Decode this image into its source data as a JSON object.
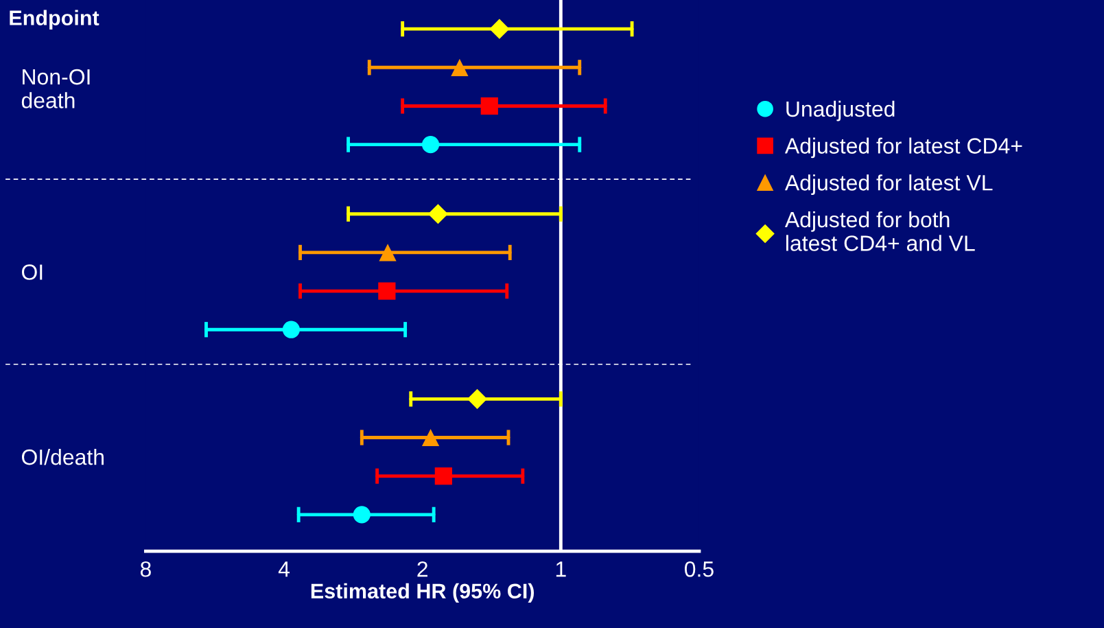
{
  "chart_data": {
    "type": "scatter",
    "orientation": "horizontal",
    "xlabel": "Estimated HR (95% CI)",
    "ylabel": "Endpoint",
    "categories": [
      "Non-OI\ndeath",
      "OI",
      "OI/death"
    ],
    "series": [
      {
        "name": "Unadjusted",
        "color": "#00ffff",
        "marker": "circle",
        "values": [
          1.92,
          3.86,
          2.71
        ],
        "errors": [
          [
            0.91,
            2.9
          ],
          [
            2.18,
            5.91
          ],
          [
            1.89,
            3.72
          ]
        ]
      },
      {
        "name": "Adjusted for latest CD4+",
        "color": "#ff0000",
        "marker": "square",
        "values": [
          1.43,
          2.39,
          1.8
        ],
        "errors": [
          [
            0.8,
            2.21
          ],
          [
            1.31,
            3.69
          ],
          [
            1.21,
            2.51
          ]
        ]
      },
      {
        "name": "Adjusted for latest VL",
        "color": "#ff9900",
        "marker": "triangle",
        "values": [
          1.66,
          2.38,
          1.92
        ],
        "errors": [
          [
            0.91,
            2.61
          ],
          [
            1.29,
            3.69
          ],
          [
            1.3,
            2.71
          ]
        ]
      },
      {
        "name": "Adjusted for both\nlatest CD4+ and VL",
        "color": "#ffff00",
        "marker": "diamond",
        "values": [
          1.36,
          1.85,
          1.52
        ],
        "errors": [
          [
            0.7,
            2.21
          ],
          [
            1.0,
            2.9
          ],
          [
            1.0,
            2.12
          ]
        ]
      }
    ],
    "log": "x",
    "xlim": [
      8,
      0.5
    ],
    "xticks": [
      8,
      4,
      2,
      1,
      0.5
    ],
    "ref_lines": [
      {
        "axis": "x",
        "value": 1,
        "color": "#ffffff",
        "line_style": "solid"
      }
    ],
    "legend": "right"
  }
}
